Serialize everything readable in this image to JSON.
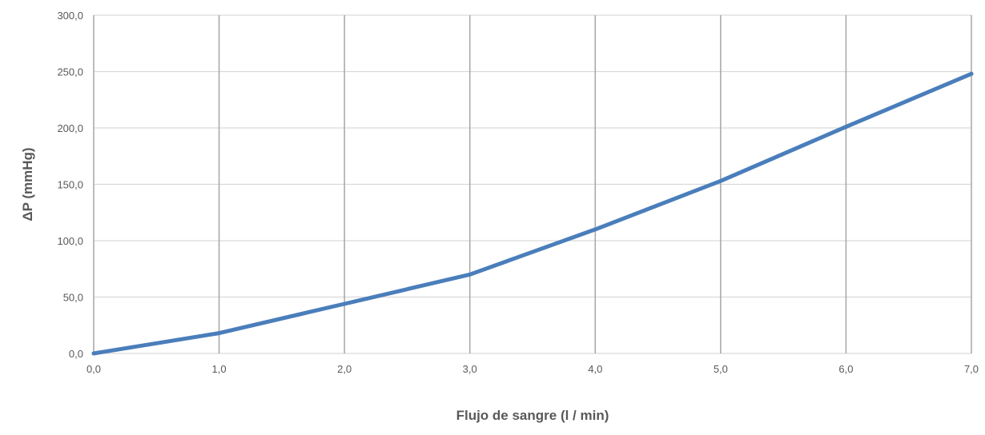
{
  "chart_data": {
    "type": "line",
    "title": "",
    "xlabel": "Flujo de sangre (l / min)",
    "ylabel": "ΔP (mmHg)",
    "xlim": [
      0,
      7
    ],
    "ylim": [
      0,
      300
    ],
    "x_ticks": [
      "0,0",
      "1,0",
      "2,0",
      "3,0",
      "4,0",
      "5,0",
      "6,0",
      "7,0"
    ],
    "y_ticks": [
      "0,0",
      "50,0",
      "100,0",
      "150,0",
      "200,0",
      "250,0",
      "300,0"
    ],
    "grid": {
      "vertical": true,
      "horizontal": true
    },
    "series": [
      {
        "x": [
          0,
          1,
          2,
          3,
          4,
          5,
          6,
          7
        ],
        "y": [
          0,
          18,
          44,
          70,
          110,
          153,
          201,
          248
        ],
        "color": "#4a7ebb"
      }
    ],
    "colors": {
      "line": "#4a7ebb",
      "vgrid": "#a6a6a6",
      "hgrid": "#d9d9d9",
      "text": "#595959"
    }
  }
}
